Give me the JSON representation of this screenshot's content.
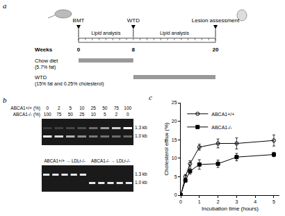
{
  "panel_a": {
    "label": "a",
    "events": [
      {
        "label": "BMT",
        "week": 0
      },
      {
        "label": "WTD",
        "week": 8
      },
      {
        "label": "Lesion assessment",
        "week": 20
      }
    ],
    "lipid_analysis": [
      "Lipid analysis",
      "Lipid analysis"
    ],
    "weeks_label": "Weeks",
    "weeks": [
      0,
      8,
      20
    ],
    "diets": [
      {
        "name": "Chow diet",
        "detail": "(5.7% fat)",
        "start": 0,
        "end": 8
      },
      {
        "name": "WTD",
        "detail": "(15% fat and 0.25% cholesterol)",
        "start": 8,
        "end": 20
      }
    ]
  },
  "panel_b": {
    "label": "b",
    "rows": [
      {
        "label": "ABCA1+/+ (%)",
        "values": [
          0,
          2,
          5,
          10,
          25,
          50,
          75,
          100
        ]
      },
      {
        "label": "ABCA1-/- (%)",
        "values": [
          100,
          75,
          50,
          25,
          10,
          5,
          2,
          0
        ]
      }
    ],
    "bands": [
      "1.3 kb",
      "1.0 kb"
    ],
    "groups": [
      {
        "label": "ABCA1+/+ → LDLr-/-",
        "lanes": 5,
        "band": "1.3 kb"
      },
      {
        "label": "ABCA1-/- → LDLr-/-",
        "lanes": 5,
        "band": "1.0 kb"
      }
    ]
  },
  "chart_data": {
    "label": "c",
    "type": "line",
    "x_label": "Incubation time (hours)",
    "y_label": "Cholesterol efflux (%)",
    "x": [
      0,
      0.25,
      0.5,
      1,
      2,
      3,
      5
    ],
    "xlim": [
      0,
      5.3
    ],
    "xticks": [
      0,
      1,
      2,
      3,
      4,
      5
    ],
    "ylim": [
      0,
      25
    ],
    "yticks": [
      0,
      5,
      10,
      15,
      20,
      25
    ],
    "grid": false,
    "legend": "upper left",
    "series": [
      {
        "name": "ABCA1+/+",
        "color": "#000000",
        "marker": "open circle",
        "values": [
          0,
          5,
          8.5,
          13,
          14,
          14,
          14.8
        ],
        "errors": [
          0.3,
          0.6,
          0.8,
          0.8,
          1.2,
          1.5,
          1.5
        ]
      },
      {
        "name": "ABCA1-/-",
        "color": "#000000",
        "marker": "square",
        "values": [
          0,
          4,
          6.5,
          8.3,
          8.5,
          10.3,
          11
        ],
        "errors": [
          0.3,
          0.5,
          0.8,
          1.3,
          1,
          1,
          0.6
        ]
      }
    ]
  }
}
